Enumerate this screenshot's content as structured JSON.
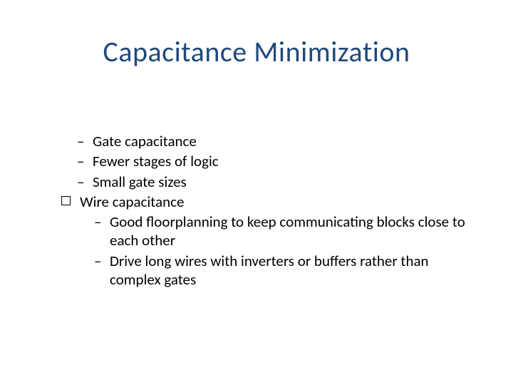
{
  "slide": {
    "title": "Capacitance Minimization",
    "title_color": "#1f497d",
    "title_fontsize": 40,
    "body_fontsize": 21,
    "background_color": "#ffffff",
    "text_color": "#000000",
    "items": {
      "gate_cap": "Gate capacitance",
      "fewer_stages": "Fewer stages of logic",
      "small_gate": "Small gate sizes",
      "wire_cap": "Wire capacitance",
      "floorplan": "Good floorplanning to keep communicating blocks close to each other",
      "drive_long": "Drive long wires with inverters or buffers rather than complex gates"
    }
  }
}
